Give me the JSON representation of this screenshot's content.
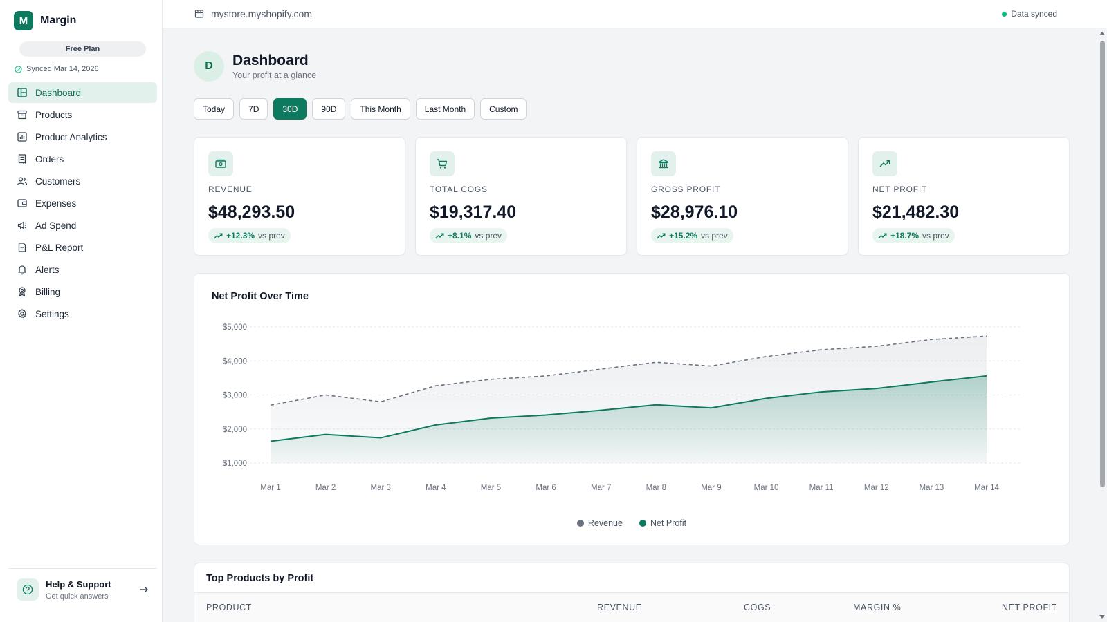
{
  "brand": {
    "logo_letter": "M",
    "name": "Margin"
  },
  "plan": "Free Plan",
  "synced_text": "Synced Mar 14, 2026",
  "nav": [
    {
      "label": "Dashboard",
      "icon": "dashboard-icon",
      "active": true
    },
    {
      "label": "Products",
      "icon": "box-icon"
    },
    {
      "label": "Product Analytics",
      "icon": "bar-chart-icon"
    },
    {
      "label": "Orders",
      "icon": "receipt-icon"
    },
    {
      "label": "Customers",
      "icon": "users-icon"
    },
    {
      "label": "Expenses",
      "icon": "wallet-icon"
    },
    {
      "label": "Ad Spend",
      "icon": "megaphone-icon"
    },
    {
      "label": "P&L Report",
      "icon": "report-icon"
    },
    {
      "label": "Alerts",
      "icon": "bell-icon"
    },
    {
      "label": "Billing",
      "icon": "badge-icon"
    },
    {
      "label": "Settings",
      "icon": "gear-icon"
    }
  ],
  "help": {
    "title": "Help & Support",
    "subtitle": "Get quick answers"
  },
  "topbar": {
    "store": "mystore.myshopify.com",
    "status": "Data synced"
  },
  "header": {
    "avatar": "D",
    "title": "Dashboard",
    "subtitle": "Your profit at a glance"
  },
  "ranges": [
    "Today",
    "7D",
    "30D",
    "90D",
    "This Month",
    "Last Month",
    "Custom"
  ],
  "active_range": "30D",
  "kpis": [
    {
      "label": "REVENUE",
      "value": "$48,293.50",
      "delta": "+12.3%",
      "vs": "vs prev",
      "icon": "money-icon"
    },
    {
      "label": "TOTAL COGS",
      "value": "$19,317.40",
      "delta": "+8.1%",
      "vs": "vs prev",
      "icon": "cart-icon"
    },
    {
      "label": "GROSS PROFIT",
      "value": "$28,976.10",
      "delta": "+15.2%",
      "vs": "vs prev",
      "icon": "bank-icon"
    },
    {
      "label": "NET PROFIT",
      "value": "$21,482.30",
      "delta": "+18.7%",
      "vs": "vs prev",
      "icon": "trend-up-icon"
    }
  ],
  "colors": {
    "accent": "#0d7a5f",
    "revenue_line": "#6b7280",
    "net_profit_line": "#0d7a5f"
  },
  "chart_data": {
    "type": "area",
    "title": "Net Profit Over Time",
    "categories": [
      "Mar 1",
      "Mar 2",
      "Mar 3",
      "Mar 4",
      "Mar 5",
      "Mar 6",
      "Mar 7",
      "Mar 8",
      "Mar 9",
      "Mar 10",
      "Mar 11",
      "Mar 12",
      "Mar 13",
      "Mar 14"
    ],
    "series": [
      {
        "name": "Revenue",
        "style": "dashed",
        "values": [
          2700,
          3000,
          2800,
          3270,
          3460,
          3560,
          3760,
          3960,
          3850,
          4130,
          4330,
          4430,
          4630,
          4730
        ]
      },
      {
        "name": "Net Profit",
        "style": "solid",
        "values": [
          1640,
          1840,
          1740,
          2120,
          2320,
          2410,
          2550,
          2710,
          2620,
          2900,
          3090,
          3190,
          3380,
          3560
        ]
      }
    ],
    "y_ticks": [
      "$1,000",
      "$2,000",
      "$3,000",
      "$4,000",
      "$5,000"
    ],
    "ylim": [
      1000,
      5000
    ],
    "grid": true,
    "legend": "bottom-center"
  },
  "table": {
    "title": "Top Products by Profit",
    "columns": [
      "PRODUCT",
      "REVENUE",
      "COGS",
      "MARGIN %",
      "NET PROFIT"
    ]
  }
}
